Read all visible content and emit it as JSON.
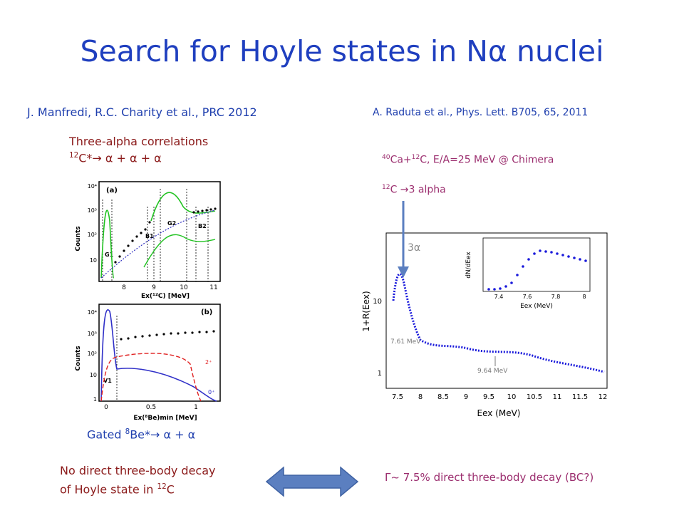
{
  "slide": {
    "title": "Search for Hoyle states in Nα nuclei",
    "left": {
      "citation": "J. Manfredi, R.C. Charity et al., PRC 2012",
      "heading": "Three-alpha correlations",
      "reaction_pre": "12",
      "reaction_body": "C*→ α + α + α",
      "gated_pre": "Gated ",
      "gated_sup": "8",
      "gated_body": "Be*→ α + α",
      "conclusion_line1": "No direct three-body decay",
      "conclusion_line2_pre": "of Hoyle state in ",
      "conclusion_line2_sup": "12",
      "conclusion_line2_post": "C"
    },
    "right": {
      "citation": "A. Raduta et al., Phys. Lett. B705, 65, 2011",
      "system_sup1": "40",
      "system_mid": "Ca+",
      "system_sup2": "12",
      "system_post": "C, E/A=25 MeV @ Chimera",
      "decay_sup": "12",
      "decay_post": "C →3 alpha",
      "conclusion": "Γ~ 7.5% direct three-body decay (BC?)"
    }
  },
  "figure_a": {
    "panel": "(a)",
    "ylabel": "Counts",
    "xlabel": "Ex(¹²C) [MeV]",
    "xticks": [
      "8",
      "9",
      "10",
      "11"
    ],
    "yticks": [
      "10⁴",
      "10³",
      "10²",
      "10"
    ],
    "gates": [
      "G1",
      "G2",
      "B1",
      "B2"
    ]
  },
  "figure_b": {
    "panel": "(b)",
    "ylabel": "Counts",
    "xlabel": "Ex(⁸Be)min [MeV]",
    "xticks": [
      "0",
      "0.5",
      "1"
    ],
    "yticks": [
      "10⁴",
      "10³",
      "10²",
      "10",
      "1"
    ],
    "gates": [
      "V1"
    ],
    "markers": [
      "2⁺",
      "0⁺"
    ]
  },
  "figure_c": {
    "label": "3α",
    "ylabel": "1+R(Eex)",
    "xlabel": "Eex (MeV)",
    "xticks": [
      "7.5",
      "8",
      "8.5",
      "9",
      "9.5",
      "10",
      "10.5",
      "11",
      "11.5",
      "12"
    ],
    "yticks": [
      "10",
      "1"
    ],
    "annot1": "7.61 MeV",
    "annot2": "9.64 MeV",
    "inset_ylabel": "dN/dEex",
    "inset_xlabel": "Eex (MeV)",
    "inset_xticks": [
      "7.4",
      "7.6",
      "7.8",
      "8"
    ]
  },
  "colors": {
    "title": "#1f3fbf",
    "citation": "#1f3fae",
    "maroon": "#8b1a1a",
    "plum": "#9b2d6e",
    "arrow": "#5b7fc0",
    "data_blue": "#1a1adb",
    "fit_green": "#22c322",
    "fit_red": "#e02020"
  }
}
